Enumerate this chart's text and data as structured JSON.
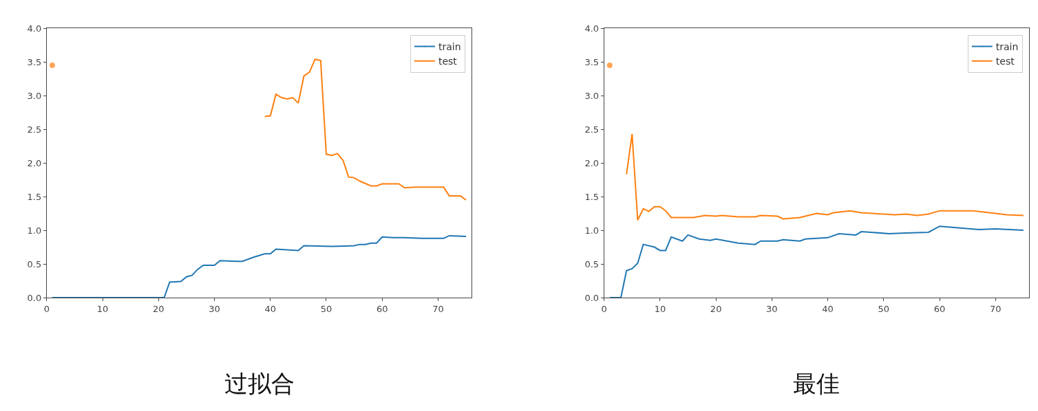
{
  "chart_data": [
    {
      "type": "line",
      "title": "过拟合",
      "xlim": [
        0,
        76
      ],
      "xticks": [
        0,
        10,
        20,
        30,
        40,
        50,
        60,
        70
      ],
      "ylim": [
        0,
        4
      ],
      "yticks": [
        {
          "value": 0,
          "label": "0.0"
        },
        {
          "value": 0.5,
          "label": "0.5"
        },
        {
          "value": 1,
          "label": "1.0"
        },
        {
          "value": 1.5,
          "label": "1.5"
        },
        {
          "value": 2,
          "label": "2.0"
        },
        {
          "value": 2.5,
          "label": "2.5"
        },
        {
          "value": 3,
          "label": "3.0"
        },
        {
          "value": 3.5,
          "label": "3.5"
        },
        {
          "value": 4,
          "label": "4.0"
        }
      ],
      "grid": false,
      "legend": "top right",
      "series": [
        {
          "name": "train",
          "color": "#1f77b4",
          "x": [
            1,
            21,
            22,
            24,
            25,
            26,
            27,
            28,
            30,
            31,
            34,
            35,
            37,
            39,
            40,
            41,
            45,
            46,
            51,
            55,
            56,
            57,
            58,
            59,
            60,
            62,
            64,
            67,
            71,
            72,
            75
          ],
          "values": [
            0,
            0,
            0.23,
            0.24,
            0.31,
            0.33,
            0.42,
            0.48,
            0.48,
            0.55,
            0.54,
            0.54,
            0.6,
            0.65,
            0.65,
            0.72,
            0.7,
            0.77,
            0.76,
            0.77,
            0.79,
            0.79,
            0.81,
            0.81,
            0.9,
            0.89,
            0.89,
            0.88,
            0.88,
            0.92,
            0.91
          ]
        },
        {
          "name": "test",
          "color": "#ff7f0e",
          "x": [
            1,
            2,
            39,
            40,
            41,
            42,
            43,
            44,
            45,
            46,
            47,
            48,
            49,
            50,
            51,
            52,
            53,
            54,
            55,
            56,
            58,
            59,
            60,
            63,
            64,
            66,
            71,
            72,
            74,
            75
          ],
          "values": [
            3.45,
            null,
            2.69,
            2.7,
            3.02,
            2.97,
            2.95,
            2.97,
            2.89,
            3.29,
            3.35,
            3.54,
            3.52,
            2.13,
            2.11,
            2.14,
            2.04,
            1.79,
            1.78,
            1.73,
            1.66,
            1.66,
            1.69,
            1.69,
            1.63,
            1.64,
            1.64,
            1.51,
            1.51,
            1.45
          ]
        }
      ]
    },
    {
      "type": "line",
      "title": "最佳",
      "xlim": [
        0,
        76
      ],
      "xticks": [
        0,
        10,
        20,
        30,
        40,
        50,
        60,
        70
      ],
      "ylim": [
        0,
        4
      ],
      "yticks": [
        {
          "value": 0,
          "label": "0.0"
        },
        {
          "value": 0.5,
          "label": "0.5"
        },
        {
          "value": 1,
          "label": "1.0"
        },
        {
          "value": 1.5,
          "label": "1.5"
        },
        {
          "value": 2,
          "label": "2.0"
        },
        {
          "value": 2.5,
          "label": "2.5"
        },
        {
          "value": 3,
          "label": "3.0"
        },
        {
          "value": 3.5,
          "label": "3.5"
        },
        {
          "value": 4,
          "label": "4.0"
        }
      ],
      "grid": false,
      "legend": "top right",
      "series": [
        {
          "name": "train",
          "color": "#1f77b4",
          "x": [
            1,
            3,
            4,
            5,
            6,
            7,
            9,
            10,
            11,
            12,
            14,
            15,
            17,
            19,
            20,
            24,
            27,
            28,
            31,
            32,
            35,
            36,
            38,
            40,
            42,
            45,
            46,
            51,
            54,
            58,
            60,
            63,
            67,
            70,
            75
          ],
          "values": [
            0,
            0,
            0.4,
            0.43,
            0.51,
            0.79,
            0.75,
            0.7,
            0.7,
            0.9,
            0.84,
            0.93,
            0.87,
            0.85,
            0.87,
            0.81,
            0.79,
            0.84,
            0.84,
            0.86,
            0.84,
            0.87,
            0.88,
            0.89,
            0.95,
            0.93,
            0.98,
            0.95,
            0.96,
            0.97,
            1.06,
            1.04,
            1.01,
            1.02,
            1.0
          ]
        },
        {
          "name": "test",
          "color": "#ff7f0e",
          "x": [
            1,
            2,
            4,
            5,
            6,
            7,
            8,
            9,
            10,
            11,
            12,
            16,
            18,
            20,
            21,
            24,
            27,
            28,
            31,
            32,
            35,
            38,
            40,
            41,
            44,
            46,
            50,
            52,
            54,
            56,
            58,
            60,
            66,
            70,
            72,
            75
          ],
          "values": [
            3.45,
            null,
            1.83,
            2.43,
            1.15,
            1.32,
            1.28,
            1.35,
            1.35,
            1.29,
            1.19,
            1.19,
            1.22,
            1.21,
            1.22,
            1.2,
            1.2,
            1.22,
            1.21,
            1.17,
            1.19,
            1.25,
            1.23,
            1.26,
            1.29,
            1.26,
            1.24,
            1.23,
            1.24,
            1.22,
            1.24,
            1.29,
            1.29,
            1.25,
            1.23,
            1.22
          ]
        }
      ]
    }
  ]
}
